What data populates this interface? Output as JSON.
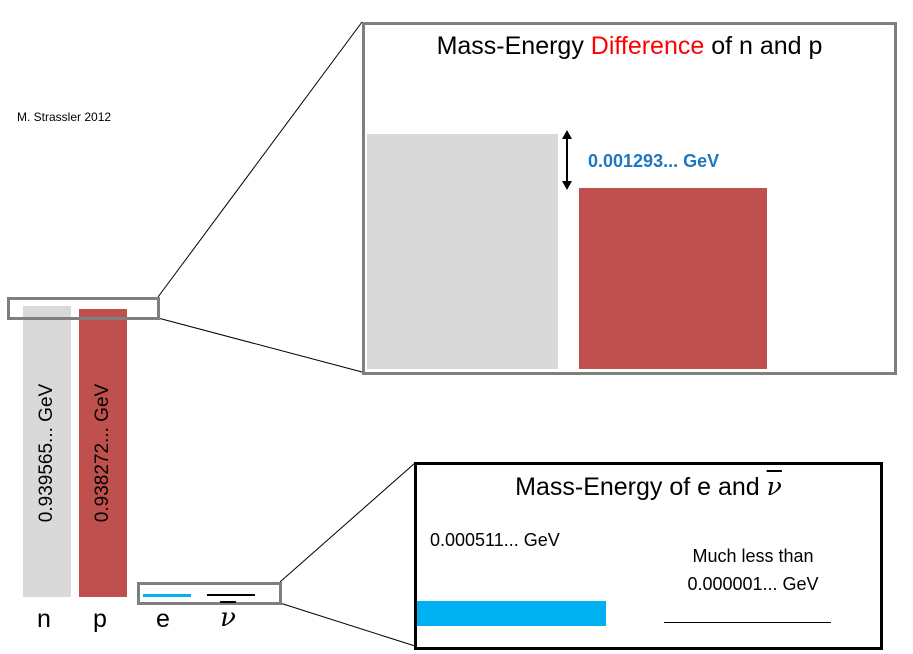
{
  "credit": "M. Strassler 2012",
  "colors": {
    "neutron": "#d9d9d9",
    "proton": "#c0504d",
    "electron": "#00b0f0",
    "antineutrino": "#000000",
    "frame": "#7f7f7f",
    "highlight": "#ff0000",
    "value_label": "#1f77c0"
  },
  "particles": {
    "n": {
      "symbol": "n",
      "value": "0.939565... GeV"
    },
    "p": {
      "symbol": "p",
      "value": "0.938272... GeV"
    },
    "e": {
      "symbol": "e"
    },
    "nu": {
      "symbol": "ν"
    }
  },
  "difference_panel": {
    "title_pre": "Mass-Energy ",
    "title_highlight": "Difference",
    "title_post": " of n and p",
    "difference_value": "0.001293... GeV"
  },
  "lepton_panel": {
    "title": "Mass-Energy of e and ",
    "title_symbol": "ν",
    "electron_value": "0.000511... GeV",
    "antineutrino_line1": "Much less than",
    "antineutrino_line2": "0.000001... GeV"
  }
}
